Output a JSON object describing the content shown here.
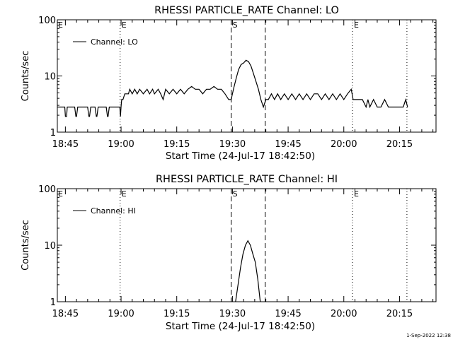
{
  "footer": {
    "date": "1-Sep-2022 12:38"
  },
  "chart_data": [
    {
      "type": "line",
      "title": "RHESSI PARTICLE_RATE Channel: LO",
      "xlabel": "Start Time (24-Jul-17 18:42:50)",
      "ylabel": "Counts/sec",
      "yscale": "log",
      "ylim": [
        1,
        100
      ],
      "yticks": [
        {
          "value": 1,
          "label": "1"
        },
        {
          "value": 10,
          "label": "10"
        },
        {
          "value": 100,
          "label": "100"
        }
      ],
      "xlim": [
        "18:42:50",
        "20:24:50"
      ],
      "xticks": [
        "18:45",
        "19:00",
        "19:15",
        "19:30",
        "19:45",
        "20:00",
        "20:15"
      ],
      "legend": {
        "label": "Channel: LO",
        "placement": "top-left"
      },
      "markers": [
        {
          "time": "18:59:45",
          "style": "dotted",
          "label": "E"
        },
        {
          "time": "19:29:40",
          "style": "dashed",
          "label": "S"
        },
        {
          "time": "19:38:50",
          "style": "dashed",
          "label": ""
        },
        {
          "time": "20:02:20",
          "style": "dotted",
          "label": "E"
        },
        {
          "time": "20:17:00",
          "style": "dotted",
          "label": ""
        }
      ],
      "series": [
        {
          "name": "Channel: LO",
          "x": [
            "18:42:50",
            "18:44:50",
            "18:45:00",
            "18:45:20",
            "18:45:30",
            "18:47:30",
            "18:47:50",
            "18:48:00",
            "18:48:20",
            "18:48:30",
            "18:51:00",
            "18:51:20",
            "18:51:30",
            "18:51:50",
            "18:52:00",
            "18:53:00",
            "18:53:20",
            "18:53:30",
            "18:53:50",
            "18:54:00",
            "18:56:00",
            "18:56:20",
            "18:56:30",
            "18:56:50",
            "18:57:00",
            "18:59:40",
            "18:59:50",
            "19:00:00",
            "19:00:10",
            "19:00:30",
            "19:01:00",
            "19:02:00",
            "19:02:20",
            "19:03:00",
            "19:03:40",
            "19:04:20",
            "19:05:00",
            "19:06:00",
            "19:07:00",
            "19:07:40",
            "19:08:30",
            "19:09:00",
            "19:10:00",
            "19:10:40",
            "19:11:20",
            "19:12:00",
            "19:13:00",
            "19:14:00",
            "19:15:00",
            "19:16:00",
            "19:17:00",
            "19:18:00",
            "19:19:00",
            "19:20:00",
            "19:21:00",
            "19:22:00",
            "19:23:00",
            "19:24:00",
            "19:25:00",
            "19:26:00",
            "19:27:00",
            "19:28:00",
            "19:29:00",
            "19:29:40",
            "19:30:20",
            "19:31:00",
            "19:31:40",
            "19:32:20",
            "19:33:00",
            "19:33:40",
            "19:34:20",
            "19:35:00",
            "19:35:40",
            "19:36:20",
            "19:37:00",
            "19:37:40",
            "19:38:20",
            "19:39:00",
            "19:39:40",
            "19:40:30",
            "19:41:20",
            "19:42:10",
            "19:43:00",
            "19:44:00",
            "19:45:00",
            "19:46:00",
            "19:47:00",
            "19:48:00",
            "19:49:00",
            "19:50:00",
            "19:51:00",
            "19:52:00",
            "19:53:00",
            "19:54:00",
            "19:55:00",
            "19:56:00",
            "19:57:00",
            "19:58:00",
            "19:59:00",
            "20:00:00",
            "20:01:00",
            "20:02:00",
            "20:02:30",
            "20:03:00",
            "20:04:00",
            "20:05:00",
            "20:06:00",
            "20:06:30",
            "20:07:00",
            "20:08:00",
            "20:09:00",
            "20:10:00",
            "20:11:00",
            "20:12:00",
            "20:13:00",
            "20:14:00",
            "20:15:00",
            "20:16:00",
            "20:16:40",
            "20:17:10"
          ],
          "y": [
            2.8,
            2.8,
            1.9,
            1.9,
            2.8,
            2.8,
            1.9,
            1.9,
            2.8,
            2.8,
            2.8,
            1.9,
            1.9,
            2.8,
            2.8,
            2.8,
            1.9,
            1.9,
            2.8,
            2.8,
            2.8,
            1.9,
            1.9,
            2.8,
            2.8,
            2.8,
            1.9,
            2.8,
            3.8,
            3.8,
            4.8,
            4.8,
            5.8,
            4.8,
            5.8,
            4.8,
            5.8,
            4.8,
            5.8,
            4.8,
            5.8,
            4.8,
            5.8,
            4.8,
            3.8,
            5.8,
            4.8,
            5.8,
            4.8,
            5.8,
            4.8,
            5.8,
            6.5,
            5.8,
            5.8,
            4.8,
            5.8,
            5.8,
            6.5,
            5.8,
            5.8,
            4.8,
            3.8,
            3.8,
            6,
            9,
            13,
            16,
            17,
            19,
            18,
            15,
            11,
            8,
            5.8,
            3.8,
            2.8,
            3.8,
            3.8,
            4.8,
            3.8,
            4.8,
            3.8,
            4.8,
            3.8,
            4.8,
            3.8,
            4.8,
            3.8,
            4.8,
            3.8,
            4.8,
            4.8,
            3.8,
            4.8,
            3.8,
            4.8,
            3.8,
            4.8,
            3.8,
            4.8,
            5.8,
            3.8,
            3.8,
            3.8,
            3.8,
            2.8,
            3.8,
            2.8,
            3.8,
            2.8,
            2.8,
            3.8,
            2.8,
            2.8,
            2.8,
            2.8,
            2.8,
            3.8,
            2.8
          ]
        }
      ]
    },
    {
      "type": "line",
      "title": "RHESSI PARTICLE_RATE Channel: HI",
      "xlabel": "Start Time (24-Jul-17 18:42:50)",
      "ylabel": "Counts/sec",
      "yscale": "log",
      "ylim": [
        1,
        100
      ],
      "yticks": [
        {
          "value": 1,
          "label": "1"
        },
        {
          "value": 10,
          "label": "10"
        },
        {
          "value": 100,
          "label": "100"
        }
      ],
      "xlim": [
        "18:42:50",
        "20:24:50"
      ],
      "xticks": [
        "18:45",
        "19:00",
        "19:15",
        "19:30",
        "19:45",
        "20:00",
        "20:15"
      ],
      "legend": {
        "label": "Channel: HI",
        "placement": "top-left"
      },
      "markers": [
        {
          "time": "18:59:45",
          "style": "dotted",
          "label": "E"
        },
        {
          "time": "19:29:40",
          "style": "dashed",
          "label": "S"
        },
        {
          "time": "19:38:50",
          "style": "dashed",
          "label": ""
        },
        {
          "time": "20:02:20",
          "style": "dotted",
          "label": "E"
        },
        {
          "time": "20:17:00",
          "style": "dotted",
          "label": ""
        }
      ],
      "series": [
        {
          "name": "Channel: HI",
          "x": [
            "19:30:50",
            "19:31:30",
            "19:32:10",
            "19:32:50",
            "19:33:30",
            "19:34:10",
            "19:34:50",
            "19:35:30",
            "19:36:10",
            "19:36:50",
            "19:37:30"
          ],
          "y": [
            1,
            2,
            4,
            7,
            10,
            12,
            10,
            7,
            5,
            2.5,
            1
          ]
        }
      ]
    }
  ]
}
